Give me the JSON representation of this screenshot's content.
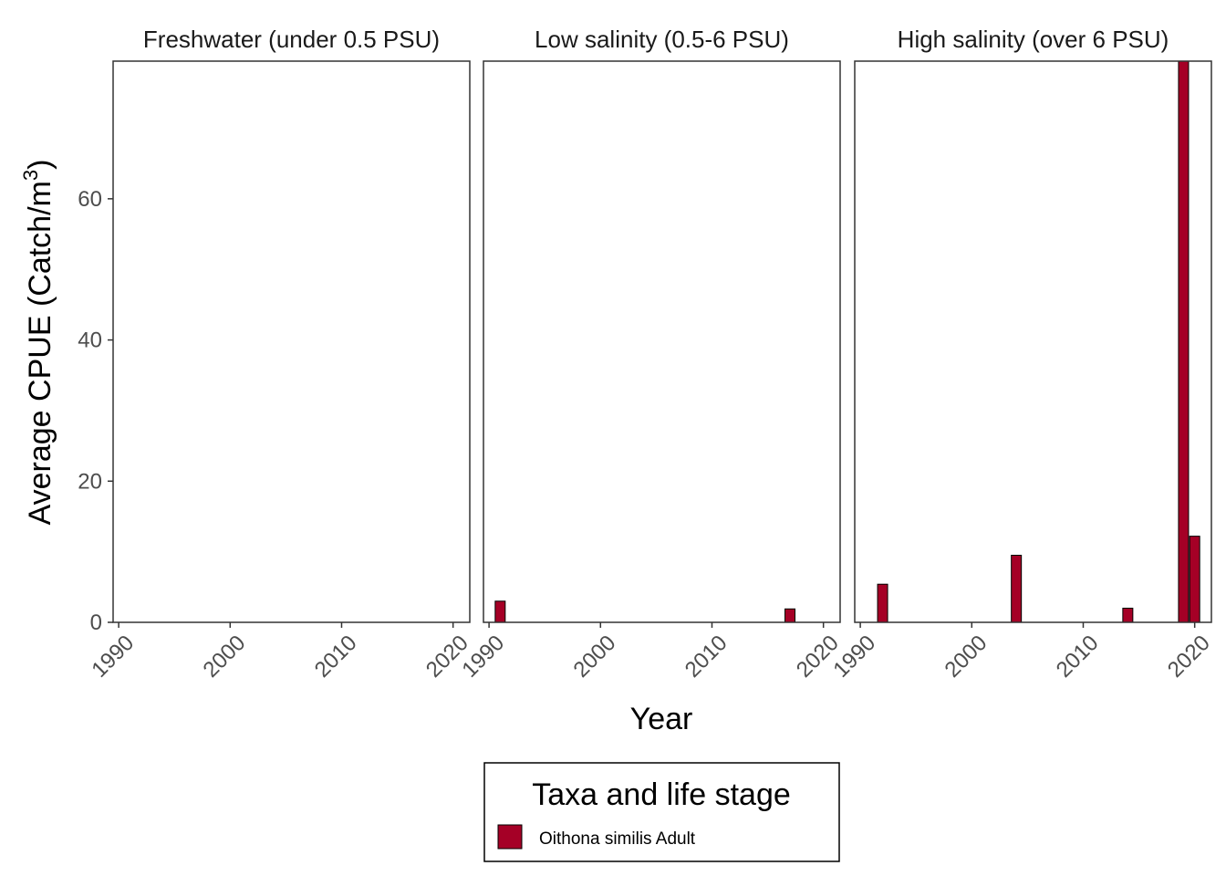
{
  "chart_data": {
    "type": "bar",
    "ylabel": "Average CPUE (Catch/m",
    "ylabel_superscript": "3",
    "ylabel_close": ")",
    "xlabel": "Year",
    "ylim": [
      0,
      79.5
    ],
    "xlim": [
      1989.5,
      2021.5
    ],
    "yticks": [
      0,
      20,
      40,
      60
    ],
    "xticks": [
      1990,
      2000,
      2010,
      2020
    ],
    "grid": false,
    "legend": {
      "title": "Taxa and life stage",
      "placement": "bottom",
      "entries": [
        {
          "label": "Oithona similis Adult",
          "color": "#a50026"
        }
      ]
    },
    "bar_color": "#a50026",
    "bar_outline": "#000000",
    "panels": [
      {
        "title": "Freshwater (under 0.5 PSU)",
        "x": [],
        "values": []
      },
      {
        "title": "Low salinity (0.5-6 PSU)",
        "x": [
          1991,
          2017
        ],
        "values": [
          3.0,
          1.9
        ]
      },
      {
        "title": "High salinity (over 6 PSU)",
        "x": [
          1992,
          2004,
          2014,
          2019,
          2020
        ],
        "values": [
          5.4,
          9.5,
          2.0,
          79.5,
          12.2
        ]
      }
    ]
  }
}
